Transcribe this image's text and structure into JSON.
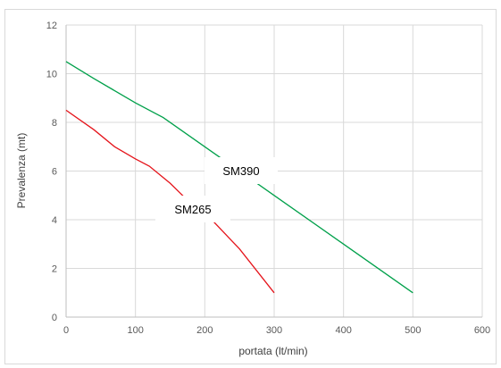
{
  "chart_data": {
    "type": "line",
    "title": "",
    "xlabel": "portata (lt/min)",
    "ylabel": "Prevalenza (mt)",
    "xlim": [
      0,
      600
    ],
    "ylim": [
      0,
      12
    ],
    "x_ticks": [
      0,
      100,
      200,
      300,
      400,
      500,
      600
    ],
    "y_ticks": [
      0,
      2,
      4,
      6,
      8,
      10,
      12
    ],
    "grid": true,
    "legend": "none",
    "series": [
      {
        "name": "SM390",
        "color": "#00a04a",
        "points": [
          [
            0,
            10.5
          ],
          [
            40,
            9.8
          ],
          [
            100,
            8.8
          ],
          [
            140,
            8.2
          ],
          [
            200,
            7.0
          ],
          [
            250,
            6.0
          ],
          [
            300,
            5.0
          ],
          [
            400,
            3.0
          ],
          [
            500,
            1.0
          ]
        ],
        "label": "SM390"
      },
      {
        "name": "SM265",
        "color": "#e5141b",
        "points": [
          [
            0,
            8.5
          ],
          [
            40,
            7.7
          ],
          [
            70,
            7.0
          ],
          [
            100,
            6.5
          ],
          [
            120,
            6.2
          ],
          [
            150,
            5.5
          ],
          [
            175,
            4.8
          ],
          [
            210,
            4.0
          ],
          [
            250,
            2.8
          ],
          [
            300,
            1.0
          ]
        ],
        "label": "SM265"
      }
    ],
    "annotations": []
  }
}
